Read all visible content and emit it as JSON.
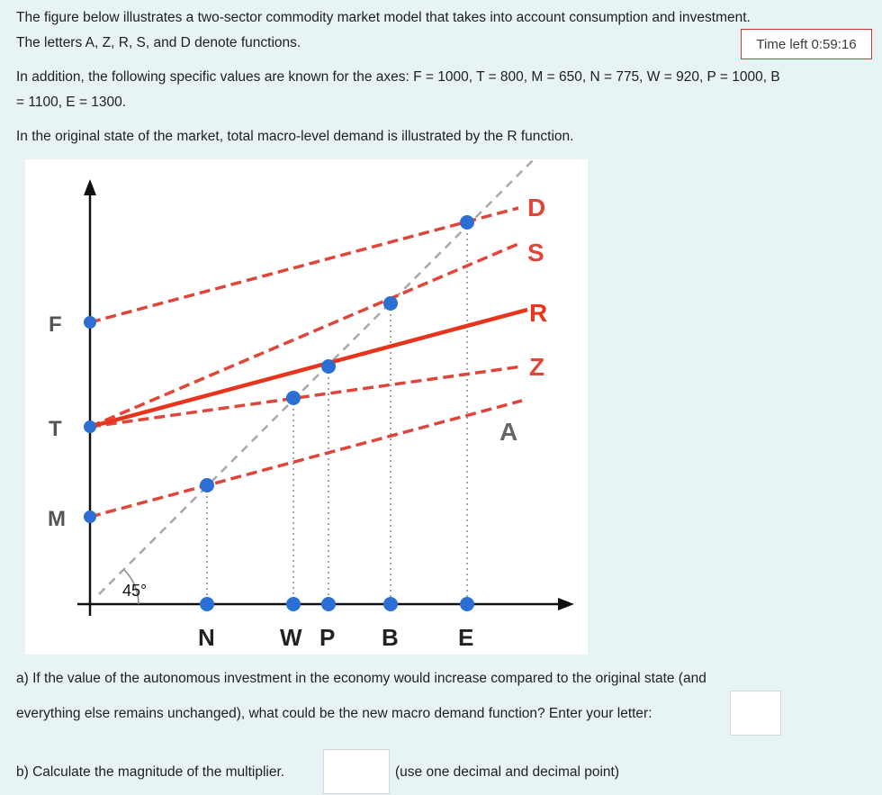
{
  "intro": {
    "line1": "The figure below illustrates a two-sector commodity market model that takes into account consumption and investment.",
    "line2": "The letters A, Z, R, S, and D denote functions.",
    "line3": "In addition, the following specific values are known for the axes: F = 1000, T = 800, M = 650, N = 775, W = 920, P = 1000, B",
    "line4": "= 1100, E = 1300.",
    "line5": "In the original state of the market, total macro-level demand is illustrated by the R function."
  },
  "timer": {
    "text": "Time left 0:59:16"
  },
  "figure": {
    "colors": {
      "highlight": "#e8341c",
      "dashed": "#e0453a",
      "point": "#2b6fd4",
      "diagonal": "#a8a8a8"
    },
    "y_labels": {
      "F": "F",
      "T": "T",
      "M": "M"
    },
    "x_labels": {
      "N": "N",
      "W": "W",
      "P": "P",
      "B": "B",
      "E": "E"
    },
    "function_labels": {
      "D": "D",
      "S": "S",
      "R": "R",
      "Z": "Z",
      "A": "A"
    },
    "angle_label": "45°"
  },
  "question_a": {
    "line1": "a) If the value of the autonomous investment in the economy would increase compared to the original state (and",
    "line2": "everything else remains unchanged), what could be the new macro demand function? Enter your letter:",
    "answer": ""
  },
  "question_b": {
    "text": "b) Calculate the magnitude of the multiplier.",
    "answer": "",
    "hint": "(use one decimal and decimal point)"
  }
}
